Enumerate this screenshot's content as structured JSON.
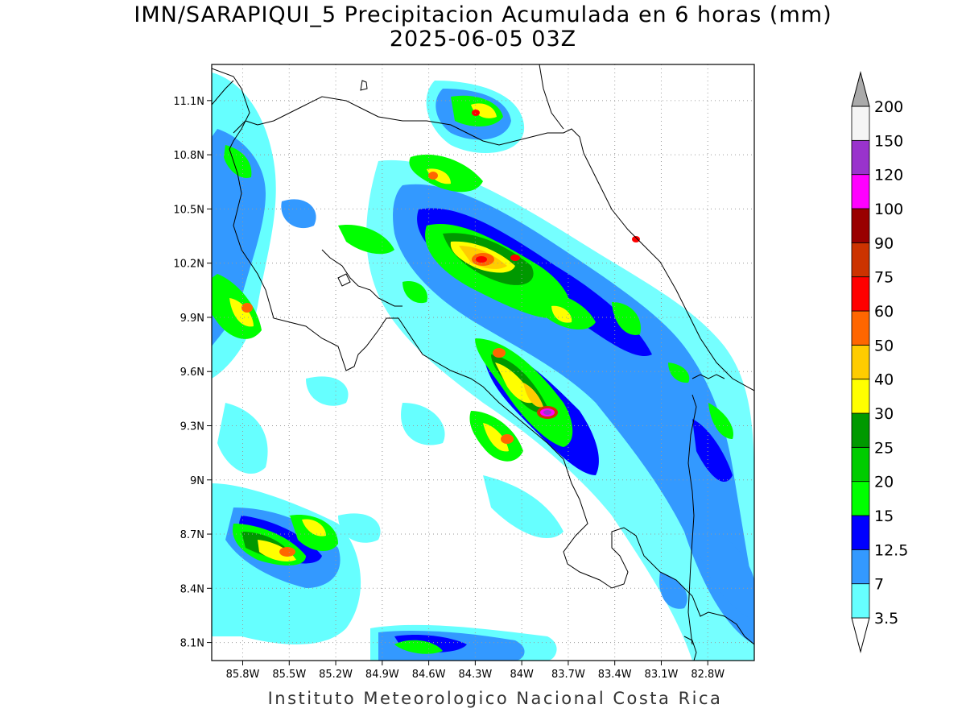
{
  "title": {
    "line1": "IMN/SARAPIQUI_5 Precipitacion Acumulada en 6 horas (mm)",
    "line2": "2025-06-05 03Z"
  },
  "footer": "Instituto Meteorologico Nacional Costa Rica",
  "map": {
    "lon_range": [
      -86.0,
      -82.5
    ],
    "lat_range": [
      8.0,
      11.3
    ],
    "lat_ticks": [
      {
        "value": 11.1,
        "label": "11.1N"
      },
      {
        "value": 10.8,
        "label": "10.8N"
      },
      {
        "value": 10.5,
        "label": "10.5N"
      },
      {
        "value": 10.2,
        "label": "10.2N"
      },
      {
        "value": 9.9,
        "label": "9.9N"
      },
      {
        "value": 9.6,
        "label": "9.6N"
      },
      {
        "value": 9.3,
        "label": "9.3N"
      },
      {
        "value": 9.0,
        "label": "9N"
      },
      {
        "value": 8.7,
        "label": "8.7N"
      },
      {
        "value": 8.4,
        "label": "8.4N"
      },
      {
        "value": 8.1,
        "label": "8.1N"
      }
    ],
    "lon_ticks": [
      {
        "value": -85.8,
        "label": "85.8W"
      },
      {
        "value": -85.5,
        "label": "85.5W"
      },
      {
        "value": -85.2,
        "label": "85.2W"
      },
      {
        "value": -84.9,
        "label": "84.9W"
      },
      {
        "value": -84.6,
        "label": "84.6W"
      },
      {
        "value": -84.3,
        "label": "84.3W"
      },
      {
        "value": -84.0,
        "label": "84W"
      },
      {
        "value": -83.7,
        "label": "83.7W"
      },
      {
        "value": -83.4,
        "label": "83.4W"
      },
      {
        "value": -83.1,
        "label": "83.1W"
      },
      {
        "value": -82.8,
        "label": "82.8W"
      }
    ],
    "grid": true
  },
  "colorbar": {
    "levels": [
      {
        "label": "3.5",
        "color": "#66ffff"
      },
      {
        "label": "7",
        "color": "#3399ff"
      },
      {
        "label": "12.5",
        "color": "#0000ff"
      },
      {
        "label": "15",
        "color": "#00ff00"
      },
      {
        "label": "20",
        "color": "#00cc00"
      },
      {
        "label": "25",
        "color": "#009900"
      },
      {
        "label": "30",
        "color": "#ffff00"
      },
      {
        "label": "40",
        "color": "#ffcc00"
      },
      {
        "label": "50",
        "color": "#ff6600"
      },
      {
        "label": "60",
        "color": "#ff0000"
      },
      {
        "label": "75",
        "color": "#cc3300"
      },
      {
        "label": "90",
        "color": "#990000"
      },
      {
        "label": "100",
        "color": "#ff00ff"
      },
      {
        "label": "120",
        "color": "#9933cc"
      },
      {
        "label": "150",
        "color": "#f5f5f5"
      },
      {
        "label": "200",
        "color": "#aaaaaa"
      }
    ]
  }
}
